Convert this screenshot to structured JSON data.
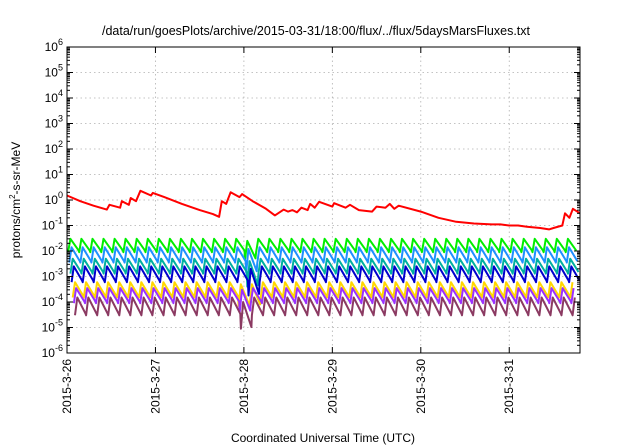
{
  "chart_data": {
    "type": "line",
    "title": "/data/run/goesPlots/archive/2015-03-31/18:00/flux/../flux/5daysMarsFluxes.txt",
    "xlabel": "Coordinated Universal Time (UTC)",
    "ylabel_parts": {
      "base": "protons/cm",
      "sup": "2",
      "rest": "-s-sr-MeV"
    },
    "x_ticks": [
      "2015-3-26",
      "2015-3-27",
      "2015-3-28",
      "2015-3-29",
      "2015-3-30",
      "2015-3-31"
    ],
    "x_range_days": [
      0,
      5.8
    ],
    "y_scale": "log",
    "ylim": [
      1e-06,
      1000000.0
    ],
    "y_ticks": [
      {
        "base": "10",
        "exp": "-6",
        "value": 1e-06
      },
      {
        "base": "10",
        "exp": "-5",
        "value": 1e-05
      },
      {
        "base": "10",
        "exp": "-4",
        "value": 0.0001
      },
      {
        "base": "10",
        "exp": "-3",
        "value": 0.001
      },
      {
        "base": "10",
        "exp": "-2",
        "value": 0.01
      },
      {
        "base": "10",
        "exp": "-1",
        "value": 0.1
      },
      {
        "base": "10",
        "exp": "0",
        "value": 1
      },
      {
        "base": "10",
        "exp": "1",
        "value": 10
      },
      {
        "base": "10",
        "exp": "2",
        "value": 100
      },
      {
        "base": "10",
        "exp": "3",
        "value": 1000
      },
      {
        "base": "10",
        "exp": "4",
        "value": 10000
      },
      {
        "base": "10",
        "exp": "5",
        "value": 100000
      },
      {
        "base": "10",
        "exp": "6",
        "value": 1000000
      }
    ],
    "grid": true,
    "series": [
      {
        "color": "#ff0000",
        "points": [
          [
            0,
            1.5
          ],
          [
            0.15,
            0.9
          ],
          [
            0.3,
            0.6
          ],
          [
            0.45,
            0.42
          ],
          [
            0.48,
            0.65
          ],
          [
            0.6,
            0.5
          ],
          [
            0.62,
            0.9
          ],
          [
            0.7,
            0.65
          ],
          [
            0.72,
            1.2
          ],
          [
            0.78,
            0.9
          ],
          [
            0.83,
            2.3
          ],
          [
            0.95,
            1.5
          ],
          [
            0.97,
            1.9
          ],
          [
            1.1,
            1.3
          ],
          [
            1.3,
            0.7
          ],
          [
            1.5,
            0.4
          ],
          [
            1.65,
            0.28
          ],
          [
            1.72,
            0.22
          ],
          [
            1.75,
            0.9
          ],
          [
            1.8,
            0.7
          ],
          [
            1.85,
            2.0
          ],
          [
            1.95,
            1.3
          ],
          [
            1.98,
            1.7
          ],
          [
            2.1,
            0.9
          ],
          [
            2.25,
            0.45
          ],
          [
            2.35,
            0.25
          ],
          [
            2.45,
            0.42
          ],
          [
            2.5,
            0.35
          ],
          [
            2.55,
            0.4
          ],
          [
            2.6,
            0.33
          ],
          [
            2.65,
            0.5
          ],
          [
            2.72,
            0.4
          ],
          [
            2.75,
            0.7
          ],
          [
            2.8,
            0.5
          ],
          [
            2.85,
            0.85
          ],
          [
            3.0,
            0.55
          ],
          [
            3.02,
            0.75
          ],
          [
            3.15,
            0.5
          ],
          [
            3.2,
            0.65
          ],
          [
            3.3,
            0.4
          ],
          [
            3.45,
            0.35
          ],
          [
            3.5,
            0.55
          ],
          [
            3.6,
            0.5
          ],
          [
            3.65,
            0.7
          ],
          [
            3.7,
            0.45
          ],
          [
            3.75,
            0.6
          ],
          [
            4.0,
            0.35
          ],
          [
            4.2,
            0.2
          ],
          [
            4.4,
            0.14
          ],
          [
            4.6,
            0.12
          ],
          [
            4.8,
            0.11
          ],
          [
            4.9,
            0.11
          ],
          [
            5.0,
            0.1
          ],
          [
            5.1,
            0.1
          ],
          [
            5.2,
            0.09
          ],
          [
            5.35,
            0.08
          ],
          [
            5.45,
            0.07
          ],
          [
            5.5,
            0.08
          ],
          [
            5.6,
            0.1
          ],
          [
            5.63,
            0.3
          ],
          [
            5.68,
            0.2
          ],
          [
            5.72,
            0.45
          ],
          [
            5.8,
            0.3
          ]
        ]
      },
      {
        "color": "#00ee00",
        "base": 0.009,
        "peak": 0.03,
        "dip": {
          "day": 2.0,
          "min": 0.0045,
          "post": 0.025
        }
      },
      {
        "color": "#1e90ff",
        "base": 0.0035,
        "peak": 0.014,
        "dip": {
          "day": 2.0,
          "min": 0.0014,
          "post": 0.012
        }
      },
      {
        "color": "#00b0a0",
        "base": 0.0013,
        "peak": 0.005,
        "dip": {
          "day": 2.0,
          "min": 0.0004,
          "post": 0.004
        }
      },
      {
        "color": "#0000cd",
        "base": 0.0006,
        "peak": 0.0025,
        "dip": {
          "day": 2.0,
          "min": 0.00018,
          "post": 0.002
        }
      },
      {
        "color": "#ffd700",
        "base": 0.00015,
        "peak": 0.0006,
        "dip": {
          "day": 2.0,
          "min": 7e-05,
          "post": 0.0005
        }
      },
      {
        "color": "#9b30ff",
        "base": 9e-05,
        "peak": 0.00035,
        "dip": {
          "day": 2.0,
          "min": 4e-05,
          "post": 0.0003
        }
      },
      {
        "color": "#8b3a62",
        "base": 3e-05,
        "peak": 0.00015,
        "dip": {
          "day": 2.0,
          "min": 9e-06,
          "post": 0.0001
        }
      }
    ]
  }
}
